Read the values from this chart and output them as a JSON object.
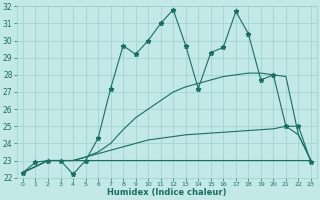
{
  "xlabel": "Humidex (Indice chaleur)",
  "bg_color": "#c2e8e8",
  "grid_color": "#9ecece",
  "line_color": "#1a6e64",
  "xlim": [
    -0.5,
    23.5
  ],
  "ylim": [
    22,
    32
  ],
  "yticks": [
    22,
    23,
    24,
    25,
    26,
    27,
    28,
    29,
    30,
    31,
    32
  ],
  "xticks": [
    0,
    1,
    2,
    3,
    4,
    5,
    6,
    7,
    8,
    9,
    10,
    11,
    12,
    13,
    14,
    15,
    16,
    17,
    18,
    19,
    20,
    21,
    22,
    23
  ],
  "series": [
    {
      "x": [
        0,
        1,
        2,
        3,
        4,
        5,
        6,
        7,
        8,
        9,
        10,
        11,
        12,
        13,
        14,
        15,
        16,
        17,
        18,
        19,
        20,
        21,
        22,
        23
      ],
      "y": [
        22.3,
        22.9,
        23.0,
        23.0,
        22.2,
        23.0,
        24.3,
        27.2,
        29.7,
        29.2,
        30.0,
        31.0,
        31.8,
        29.7,
        27.2,
        29.3,
        29.6,
        31.7,
        30.4,
        27.7,
        28.0,
        25.0,
        25.0,
        22.9
      ],
      "marker": "*",
      "linestyle": "-",
      "linewidth": 0.8,
      "markersize": 3.5
    },
    {
      "x": [
        0,
        2,
        3,
        4,
        5,
        6,
        7,
        8,
        9,
        10,
        11,
        12,
        13,
        14,
        15,
        16,
        17,
        18,
        19,
        20,
        21,
        22,
        23
      ],
      "y": [
        22.3,
        23.0,
        23.0,
        23.0,
        23.2,
        23.5,
        24.0,
        24.8,
        25.5,
        26.0,
        26.5,
        27.0,
        27.3,
        27.5,
        27.7,
        27.9,
        28.0,
        28.1,
        28.1,
        28.0,
        27.9,
        24.5,
        23.0
      ],
      "marker": "",
      "linestyle": "-",
      "linewidth": 0.8,
      "markersize": 0
    },
    {
      "x": [
        0,
        2,
        3,
        4,
        5,
        6,
        7,
        8,
        9,
        10,
        11,
        12,
        13,
        14,
        15,
        16,
        17,
        18,
        19,
        20,
        21,
        22,
        23
      ],
      "y": [
        22.3,
        23.0,
        23.0,
        23.0,
        23.0,
        23.0,
        23.0,
        23.0,
        23.0,
        23.0,
        23.0,
        23.0,
        23.0,
        23.0,
        23.0,
        23.0,
        23.0,
        23.0,
        23.0,
        23.0,
        23.0,
        23.0,
        23.0
      ],
      "marker": "",
      "linestyle": "-",
      "linewidth": 0.8,
      "markersize": 0
    },
    {
      "x": [
        0,
        2,
        3,
        4,
        5,
        6,
        7,
        8,
        9,
        10,
        11,
        12,
        13,
        14,
        15,
        16,
        17,
        18,
        19,
        20,
        21,
        22,
        23
      ],
      "y": [
        22.3,
        23.0,
        23.0,
        23.0,
        23.2,
        23.4,
        23.6,
        23.8,
        24.0,
        24.2,
        24.3,
        24.4,
        24.5,
        24.55,
        24.6,
        24.65,
        24.7,
        24.75,
        24.8,
        24.85,
        25.0,
        24.5,
        23.0
      ],
      "marker": "",
      "linestyle": "-",
      "linewidth": 0.8,
      "markersize": 0
    }
  ]
}
